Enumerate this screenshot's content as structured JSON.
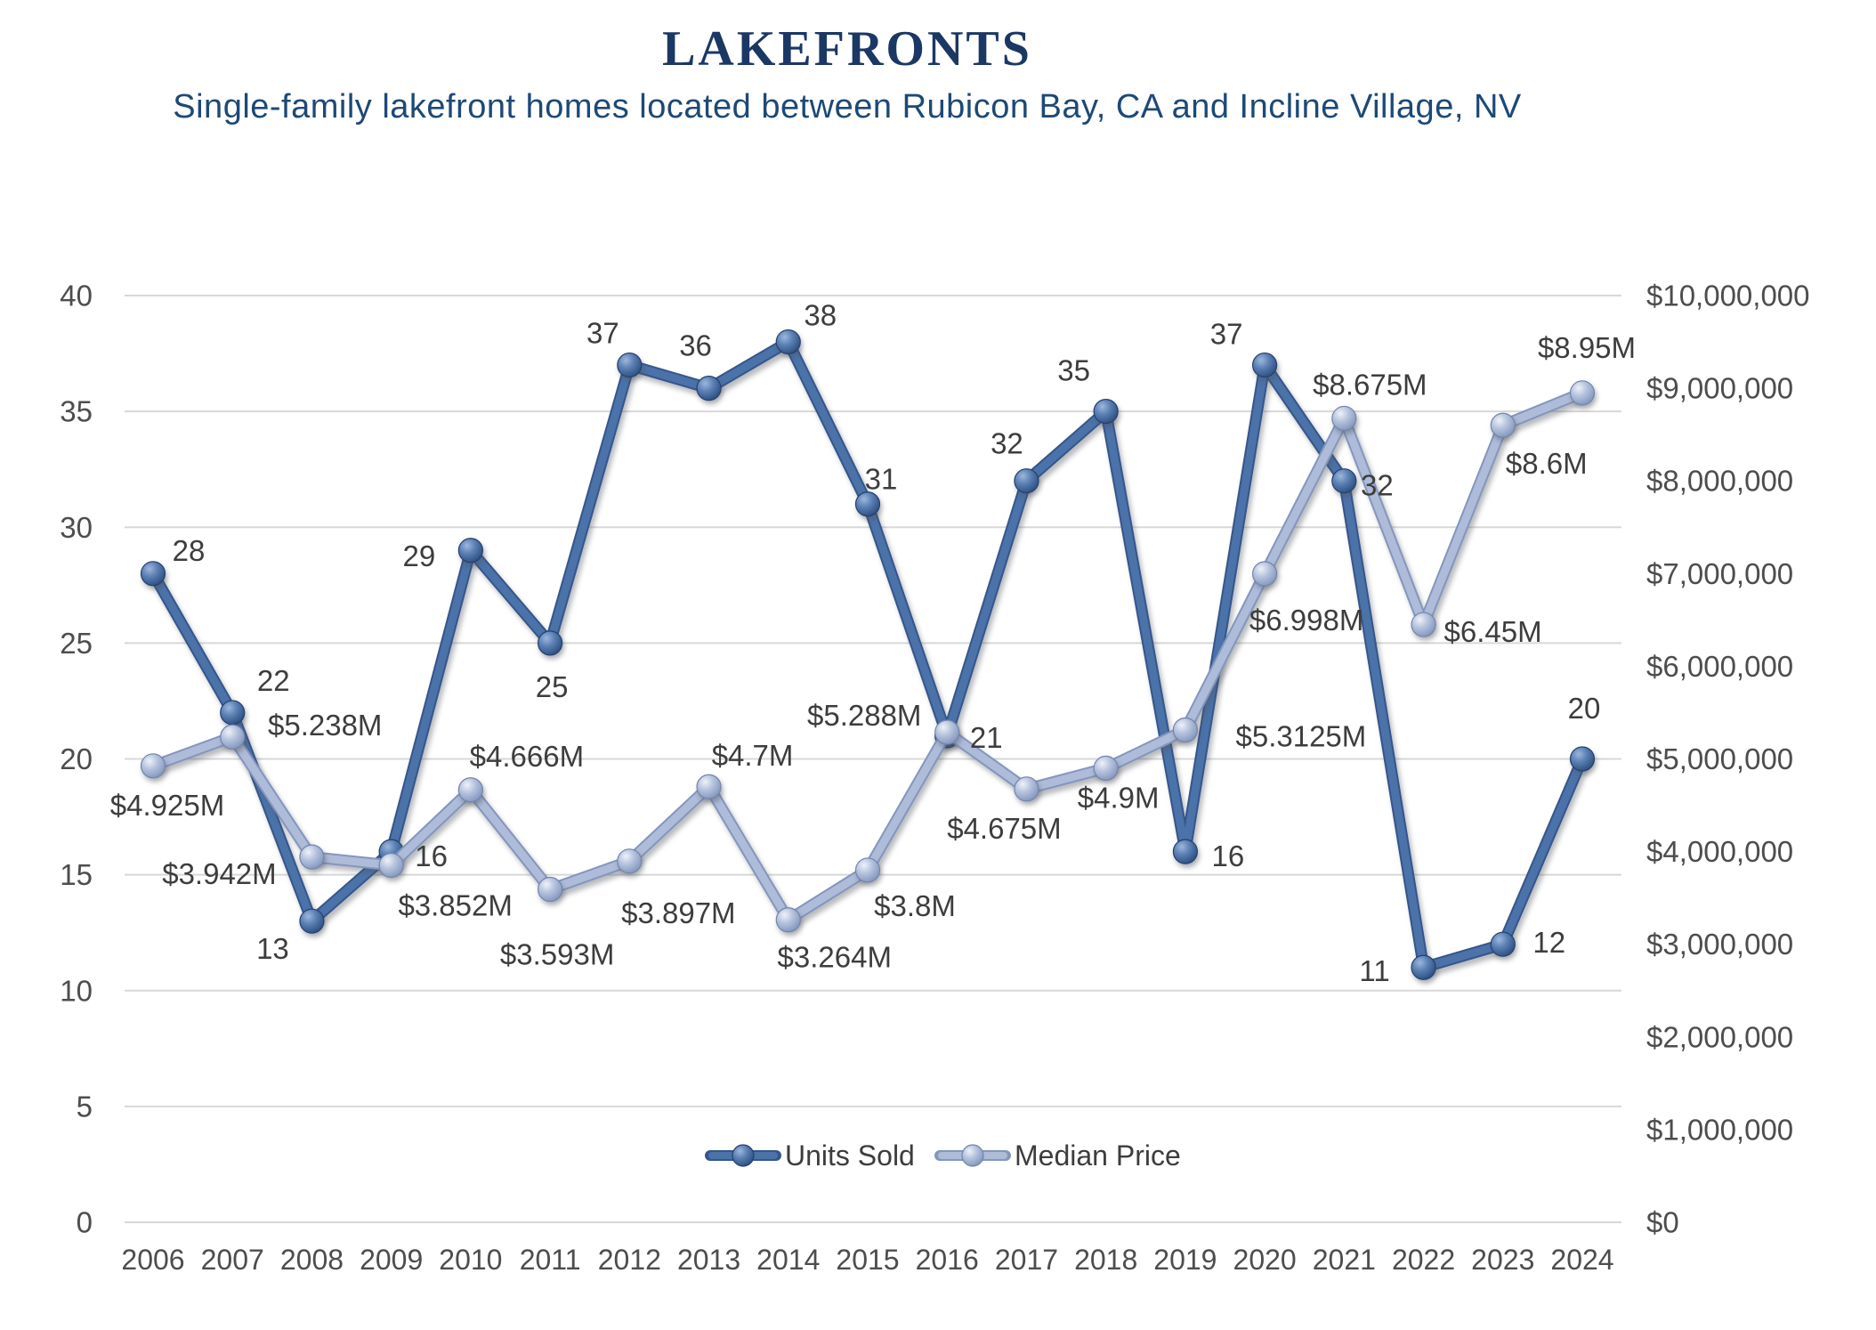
{
  "header": {
    "title": "LAKEFRONTS",
    "subtitle": "Single-family lakefront homes located between Rubicon Bay, CA and Incline Village, NV"
  },
  "legend": {
    "items": [
      {
        "label": "Units Sold",
        "color_key": "units"
      },
      {
        "label": "Median Price",
        "color_key": "price"
      }
    ]
  },
  "chart_data": {
    "type": "line",
    "title": "LAKEFRONTS",
    "subtitle": "Single-family lakefront homes located between Rubicon Bay, CA and Incline Village, NV",
    "categories": [
      "2006",
      "2007",
      "2008",
      "2009",
      "2010",
      "2011",
      "2012",
      "2013",
      "2014",
      "2015",
      "2016",
      "2017",
      "2018",
      "2019",
      "2020",
      "2021",
      "2022",
      "2023",
      "2024"
    ],
    "series": [
      {
        "name": "Units Sold",
        "axis": "left",
        "values": [
          28,
          22,
          13,
          16,
          29,
          25,
          37,
          36,
          38,
          31,
          21,
          32,
          35,
          16,
          37,
          32,
          11,
          12,
          20
        ],
        "point_labels": [
          "28",
          "22",
          "13",
          "16",
          "29",
          "25",
          "37",
          "36",
          "38",
          "31",
          "21",
          "32",
          "35",
          "16",
          "37",
          "32",
          "11",
          "12",
          "20"
        ]
      },
      {
        "name": "Median Price",
        "axis": "right",
        "values": [
          4925000,
          5238000,
          3942000,
          3852000,
          4666000,
          3593000,
          3897000,
          4700000,
          3264000,
          3800000,
          5288000,
          4675000,
          4900000,
          5312500,
          6998000,
          8675000,
          6450000,
          8600000,
          8950000
        ],
        "point_labels": [
          "$4.925M",
          "$5.238M",
          "$3.942M",
          "$3.852M",
          "$4.666M",
          "$3.593M",
          "$3.897M",
          "$4.7M",
          "$3.264M",
          "$3.8M",
          "$5.288M",
          "$4.675M",
          "$4.9M",
          "$5.3125M",
          "$6.998M",
          "$8.675M",
          "$6.45M",
          "$8.6M",
          "$8.95M"
        ]
      }
    ],
    "left_axis": {
      "min": 0,
      "max": 40,
      "tick_interval": 5,
      "ticks": [
        "0",
        "5",
        "10",
        "15",
        "20",
        "25",
        "30",
        "35",
        "40"
      ]
    },
    "right_axis": {
      "min": 0,
      "max": 10000000,
      "tick_interval": 1000000,
      "ticks": [
        "$0",
        "$1,000,000",
        "$2,000,000",
        "$3,000,000",
        "$4,000,000",
        "$5,000,000",
        "$6,000,000",
        "$7,000,000",
        "$8,000,000",
        "$9,000,000",
        "$10,000,000"
      ]
    },
    "grid": "horizontal",
    "legend_position": "bottom-center-inside"
  },
  "colors": {
    "title": "#1b3764",
    "subtitle": "#1d4976",
    "units_line": "#4b72a9",
    "units_line_edge": "#35568a",
    "units_marker_stroke": "#24416f",
    "price_line": "#aebcda",
    "price_line_edge": "#8396bd",
    "price_marker_stroke": "#7485ab",
    "grid": "#d8d8d8",
    "axis_text": "#4d4d4d",
    "data_label": "#3d3d3d"
  }
}
